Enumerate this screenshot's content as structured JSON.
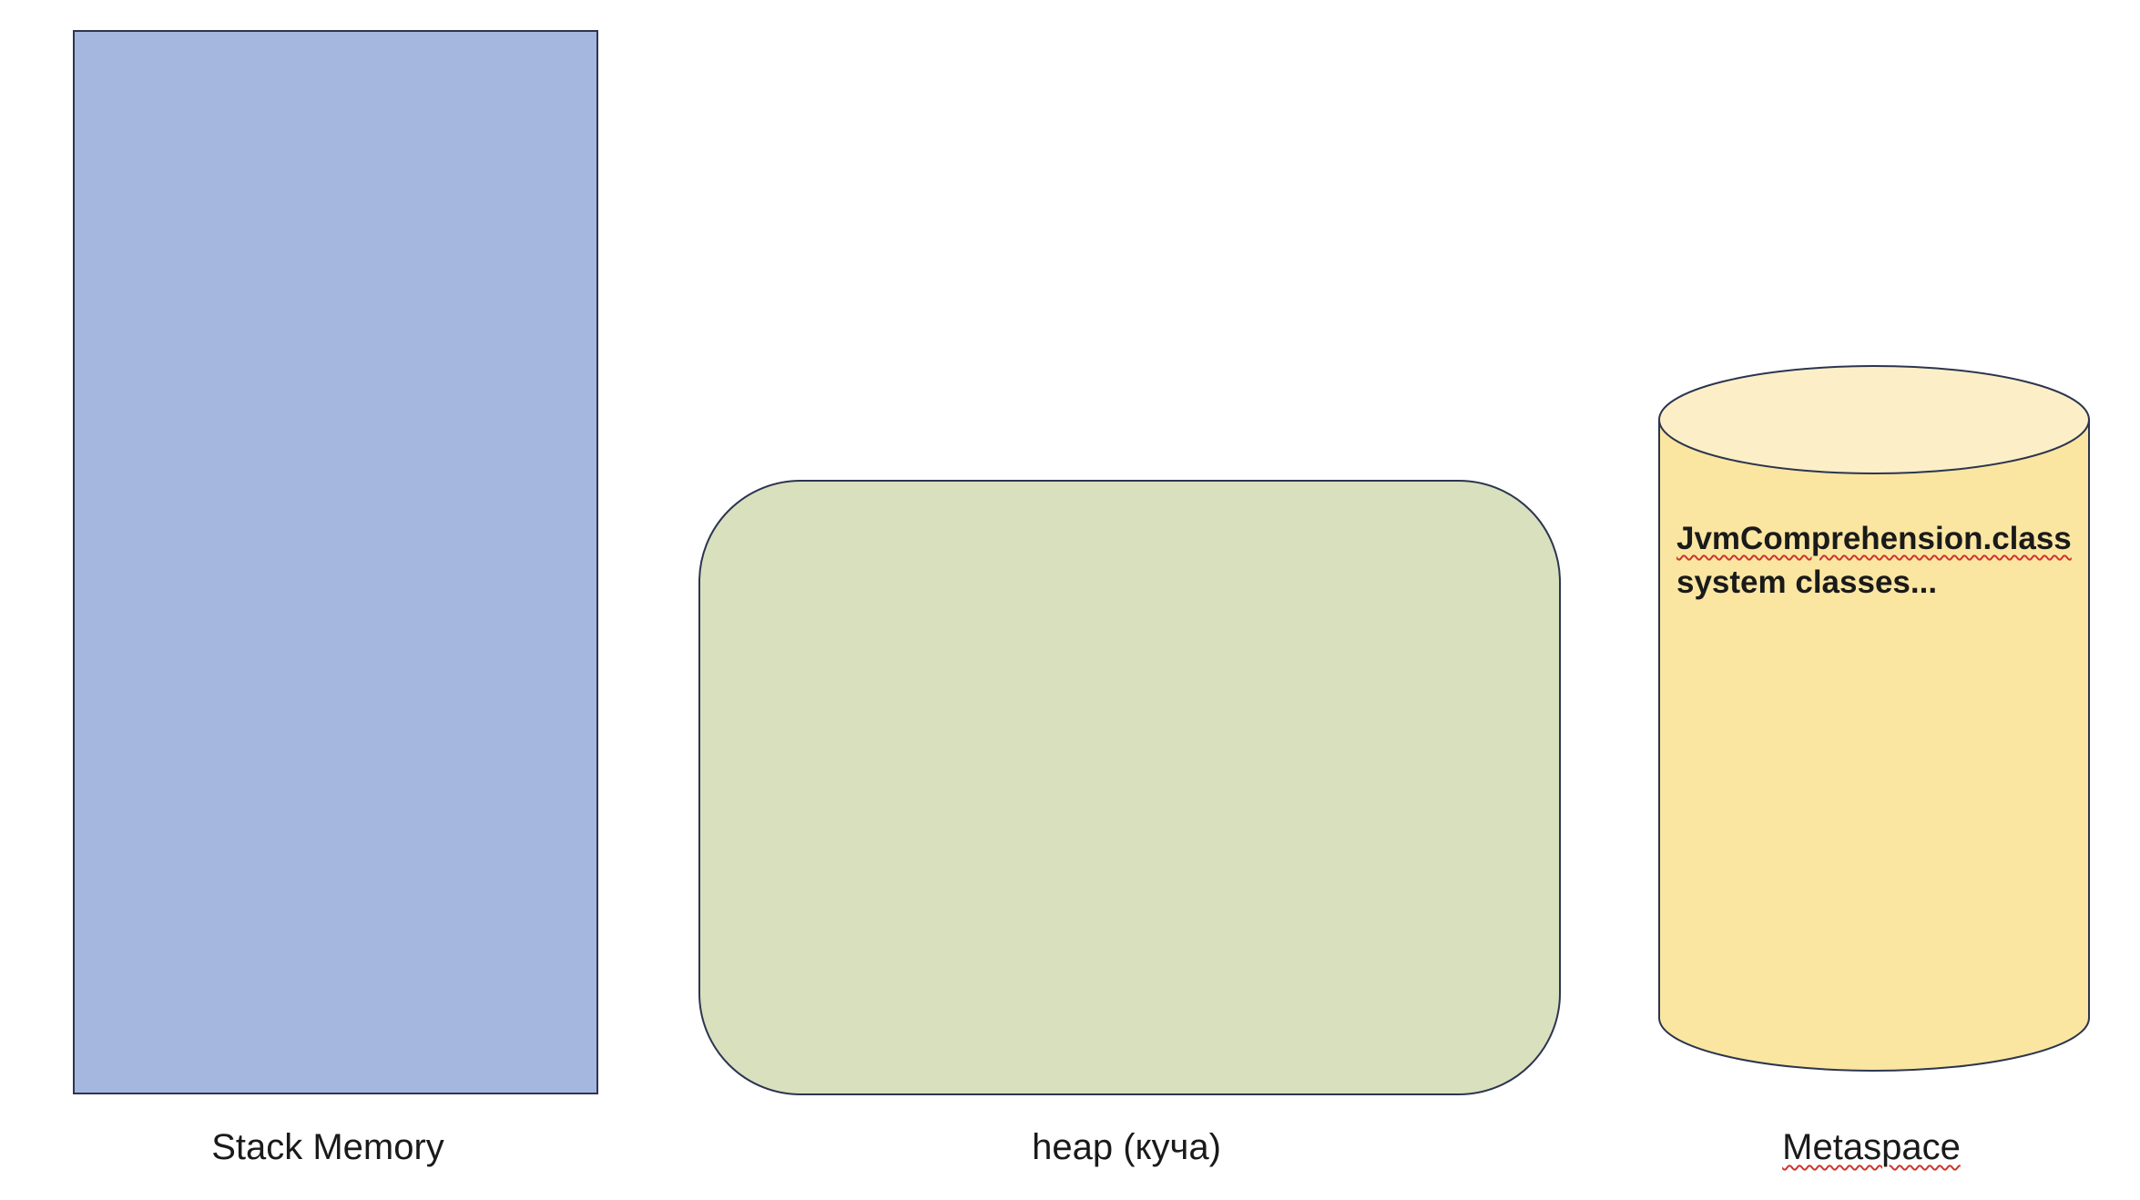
{
  "diagram": {
    "stack": {
      "caption": "Stack Memory",
      "fill": "#a5b7df"
    },
    "heap": {
      "caption": "heap (куча)",
      "fill": "#d9e0bd"
    },
    "metaspace": {
      "caption": "Metaspace",
      "body_fill": "#fae6a1",
      "top_fill": "#fcefc7",
      "lines": [
        "JvmComprehension.class",
        "system classes..."
      ]
    },
    "colors": {
      "outline": "#2c3550",
      "spellcheck_underline": "#d0342c"
    }
  }
}
